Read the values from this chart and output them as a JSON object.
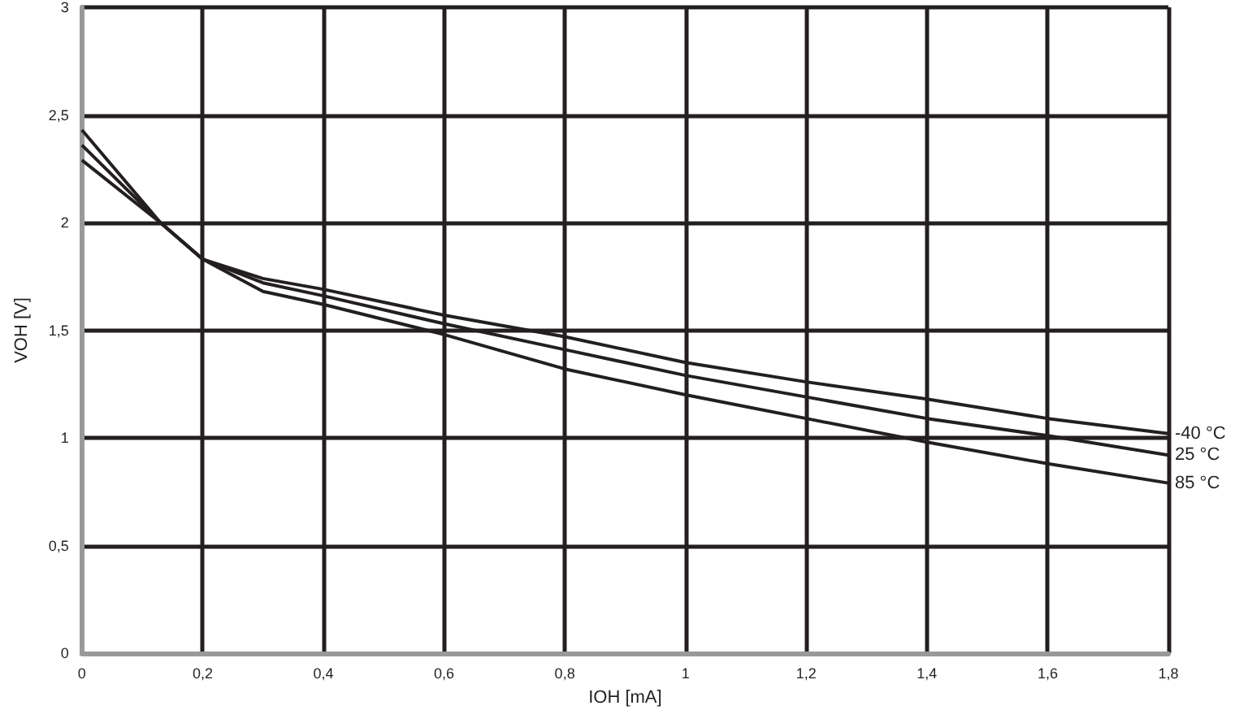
{
  "chart_data": {
    "type": "line",
    "xlabel": "IOH [mA]",
    "ylabel": "VOH [V]",
    "x": [
      0,
      0.13,
      0.2,
      0.3,
      0.4,
      0.6,
      0.8,
      1.0,
      1.2,
      1.4,
      1.6,
      1.8
    ],
    "series": [
      {
        "name": "-40 °C",
        "color": "#231f20",
        "values": [
          2.29,
          2.0,
          1.83,
          1.74,
          1.69,
          1.57,
          1.47,
          1.35,
          1.26,
          1.18,
          1.09,
          1.02
        ]
      },
      {
        "name": "25 °C",
        "color": "#231f20",
        "values": [
          2.36,
          2.0,
          1.83,
          1.72,
          1.66,
          1.53,
          1.41,
          1.29,
          1.19,
          1.09,
          1.01,
          0.92
        ]
      },
      {
        "name": "85 °C",
        "color": "#231f20",
        "values": [
          2.43,
          2.0,
          1.83,
          1.68,
          1.62,
          1.48,
          1.32,
          1.2,
          1.09,
          0.98,
          0.88,
          0.79
        ]
      }
    ],
    "xlim": [
      0,
      1.8
    ],
    "xticks": [
      0,
      {
        "value": 0.2,
        "label": "0,2"
      },
      {
        "value": 0.4,
        "label": "0,4"
      },
      {
        "value": 0.6,
        "label": "0,6"
      },
      {
        "value": 0.8,
        "label": "0,8"
      },
      1,
      {
        "value": 1.2,
        "label": "1,2"
      },
      {
        "value": 1.4,
        "label": "1,4"
      },
      {
        "value": 1.6,
        "label": "1,6"
      },
      {
        "value": 1.8,
        "label": "1,8"
      }
    ],
    "ylim": [
      0,
      3
    ],
    "yticks": [
      0,
      {
        "value": 0.5,
        "label": "0,5"
      },
      1,
      {
        "value": 1.5,
        "label": "1,5"
      },
      2,
      {
        "value": 2.5,
        "label": "2,5"
      },
      3
    ],
    "grid": true,
    "legend": false,
    "marker": "none",
    "line_style": "solid"
  }
}
